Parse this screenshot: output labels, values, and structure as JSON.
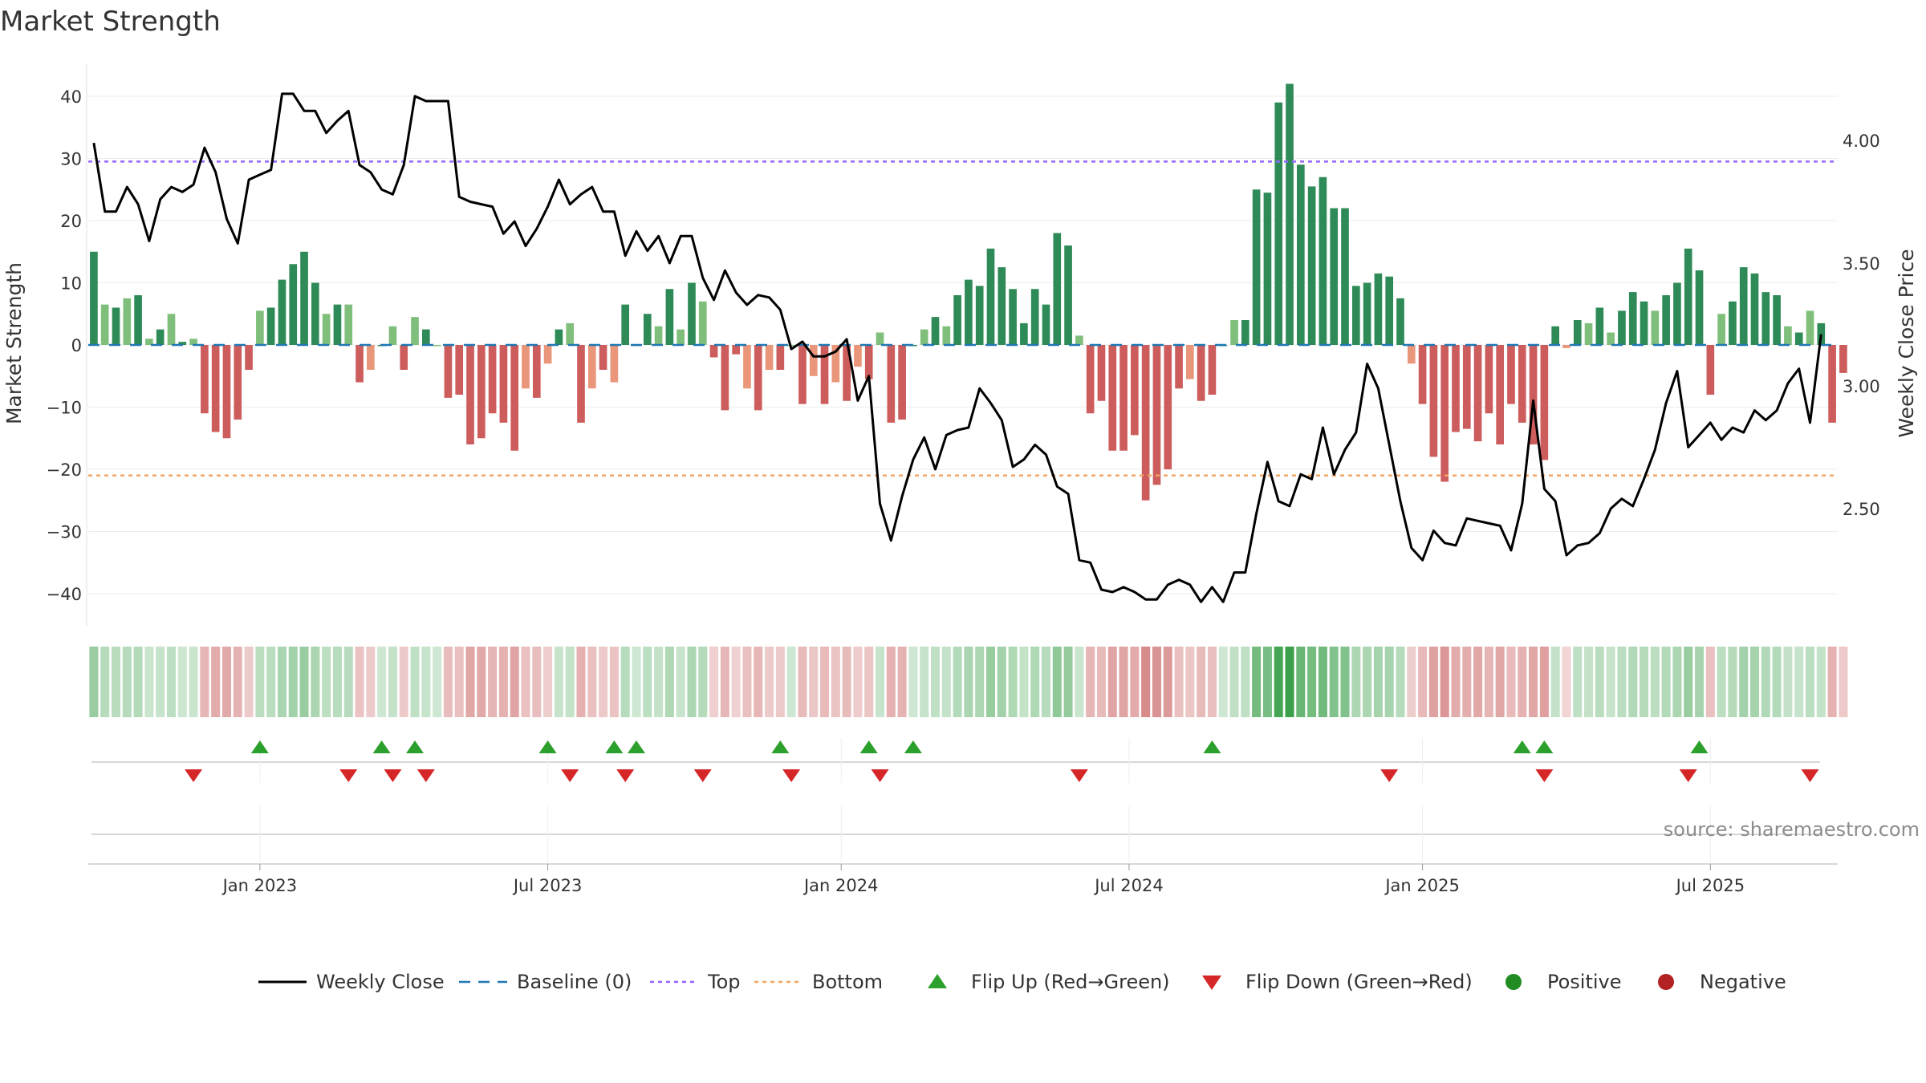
{
  "chart_data": {
    "type": "bar+line",
    "title": "Market Strength",
    "ylabel_left": "Market Strength",
    "ylabel_right": "Weekly Close Price",
    "source": "source: sharemaestro.com",
    "y_left": {
      "range": [
        -45,
        45
      ],
      "ticks": [
        40,
        30,
        20,
        10,
        0,
        -10,
        -20,
        -30,
        -40
      ],
      "tick_labels": [
        "40",
        "30",
        "20",
        "10",
        "0",
        "−10",
        "−20",
        "−30",
        "−40"
      ]
    },
    "y_right": {
      "range": [
        2.0,
        4.35
      ],
      "ticks": [
        4.0,
        3.5,
        3.0,
        2.5
      ],
      "tick_labels": [
        "4.00",
        "3.50",
        "3.00",
        "2.50"
      ]
    },
    "x_ticks": [
      {
        "label": "Jan 2023",
        "week": 30
      },
      {
        "label": "Jul 2023",
        "week": 56
      },
      {
        "label": "Jan 2024",
        "week": 82.5
      },
      {
        "label": "Jul 2024",
        "week": 108.5
      },
      {
        "label": "Jan 2025",
        "week": 135
      },
      {
        "label": "Jul 2025",
        "week": 161
      }
    ],
    "x_range": [
      14.5,
      172.5
    ],
    "top_threshold": 29.5,
    "bottom_threshold": -21,
    "strength": [
      15,
      6.5,
      6,
      7.5,
      8,
      1,
      2.5,
      5,
      0.5,
      1,
      -11,
      -14,
      -15,
      -12,
      -4,
      5.5,
      6,
      10.5,
      13,
      15,
      10,
      5,
      6.5,
      6.5,
      -6,
      -4,
      0,
      3,
      -4,
      4.5,
      2.5,
      0,
      -8.5,
      -8,
      -16,
      -15,
      -11,
      -12.5,
      -17,
      -7,
      -8.5,
      -3,
      2.5,
      3.5,
      -12.5,
      -7,
      -4,
      -6,
      6.5,
      0,
      5,
      3,
      9,
      2.5,
      10,
      7,
      -2,
      -10.5,
      -1.5,
      -7,
      -10.5,
      -4,
      -4,
      0,
      -9.5,
      -5,
      -9.5,
      -6,
      -9,
      -3.5,
      -5.5,
      2,
      -12.5,
      -12,
      0,
      2.5,
      4.5,
      3,
      8,
      10.5,
      9.5,
      15.5,
      12.5,
      9,
      3.5,
      9,
      6.5,
      18,
      16,
      1.5,
      -11,
      -9,
      -17,
      -17,
      -14.5,
      -25,
      -22.5,
      -20,
      -7,
      -5.5,
      -9,
      -8,
      0,
      4,
      4,
      25,
      24.5,
      39,
      42,
      29,
      25.5,
      27,
      22,
      22,
      9.5,
      10,
      11.5,
      11,
      7.5,
      -3,
      -9.5,
      -18,
      -22,
      -14,
      -13.5,
      -15.5,
      -11,
      -16,
      -9.5,
      -12.5,
      -16,
      -18.5,
      3,
      -0.5,
      4,
      3.5,
      6,
      2,
      5.5,
      8.5,
      7,
      5.5,
      8,
      10,
      15.5,
      12,
      -8,
      5,
      7,
      12.5,
      11.5,
      8.5,
      8,
      3,
      2,
      5.5,
      3.5,
      -12.5,
      -4.5
    ],
    "weekly_close": [
      3.99,
      3.71,
      3.71,
      3.81,
      3.74,
      3.59,
      3.76,
      3.81,
      3.79,
      3.82,
      3.97,
      3.87,
      3.68,
      3.58,
      3.84,
      3.86,
      3.88,
      4.19,
      4.19,
      4.12,
      4.12,
      4.03,
      4.08,
      4.12,
      3.9,
      3.87,
      3.8,
      3.78,
      3.9,
      4.18,
      4.16,
      4.16,
      4.16,
      3.77,
      3.75,
      3.74,
      3.73,
      3.62,
      3.67,
      3.57,
      3.64,
      3.73,
      3.84,
      3.74,
      3.78,
      3.81,
      3.71,
      3.71,
      3.53,
      3.63,
      3.55,
      3.61,
      3.5,
      3.61,
      3.61,
      3.44,
      3.35,
      3.47,
      3.38,
      3.33,
      3.37,
      3.36,
      3.31,
      3.15,
      3.18,
      3.12,
      3.12,
      3.14,
      3.19,
      2.94,
      3.04,
      2.52,
      2.37,
      2.55,
      2.7,
      2.79,
      2.66,
      2.8,
      2.82,
      2.83,
      2.99,
      2.93,
      2.86,
      2.67,
      2.7,
      2.76,
      2.72,
      2.59,
      2.56,
      2.29,
      2.28,
      2.17,
      2.16,
      2.18,
      2.16,
      2.13,
      2.13,
      2.19,
      2.21,
      2.19,
      2.12,
      2.18,
      2.12,
      2.24,
      2.24,
      2.48,
      2.69,
      2.53,
      2.51,
      2.64,
      2.62,
      2.83,
      2.64,
      2.74,
      2.81,
      3.09,
      2.99,
      2.76,
      2.53,
      2.34,
      2.29,
      2.41,
      2.36,
      2.35,
      2.46,
      2.45,
      2.44,
      2.43,
      2.33,
      2.52,
      2.94,
      2.58,
      2.53,
      2.31,
      2.35,
      2.36,
      2.4,
      2.5,
      2.54,
      2.51,
      2.62,
      2.74,
      2.93,
      3.06,
      2.75,
      2.8,
      2.85,
      2.78,
      2.83,
      2.81,
      2.9,
      2.86,
      2.9,
      3.01,
      3.07,
      2.85,
      3.21
    ],
    "flip_up_weeks": [
      30,
      41,
      44,
      56,
      62,
      64,
      77,
      85,
      89,
      116,
      144,
      146,
      160
    ],
    "flip_down_weeks": [
      24,
      38,
      42,
      45,
      58,
      63,
      70,
      78,
      86,
      104,
      132,
      146,
      159,
      170
    ],
    "legend": [
      {
        "label": "Weekly Close",
        "symbol": "line",
        "color": "#000000"
      },
      {
        "label": "Baseline (0)",
        "symbol": "dash",
        "color": "#1f77b4"
      },
      {
        "label": "Top",
        "symbol": "dot",
        "color": "#9467ff"
      },
      {
        "label": "Bottom",
        "symbol": "dot",
        "color": "#f4a460"
      },
      {
        "label": "Flip Up (Red→Green)",
        "symbol": "triangle-up",
        "color": "#2ca02c"
      },
      {
        "label": "Flip Down (Green→Red)",
        "symbol": "triangle-down",
        "color": "#d62728"
      },
      {
        "label": "Positive",
        "symbol": "circle",
        "color": "#228b22"
      },
      {
        "label": "Negative",
        "symbol": "circle",
        "color": "#b22222"
      }
    ]
  },
  "colors": {
    "pos_dark": "#2e8b57",
    "pos_light": "#7fbf7b",
    "neg_dark": "#cd5c5c",
    "neg_light": "#e9967a",
    "line": "#000000",
    "top": "#9467ff",
    "bottom": "#f4a460",
    "baseline": "#1f77b4"
  }
}
